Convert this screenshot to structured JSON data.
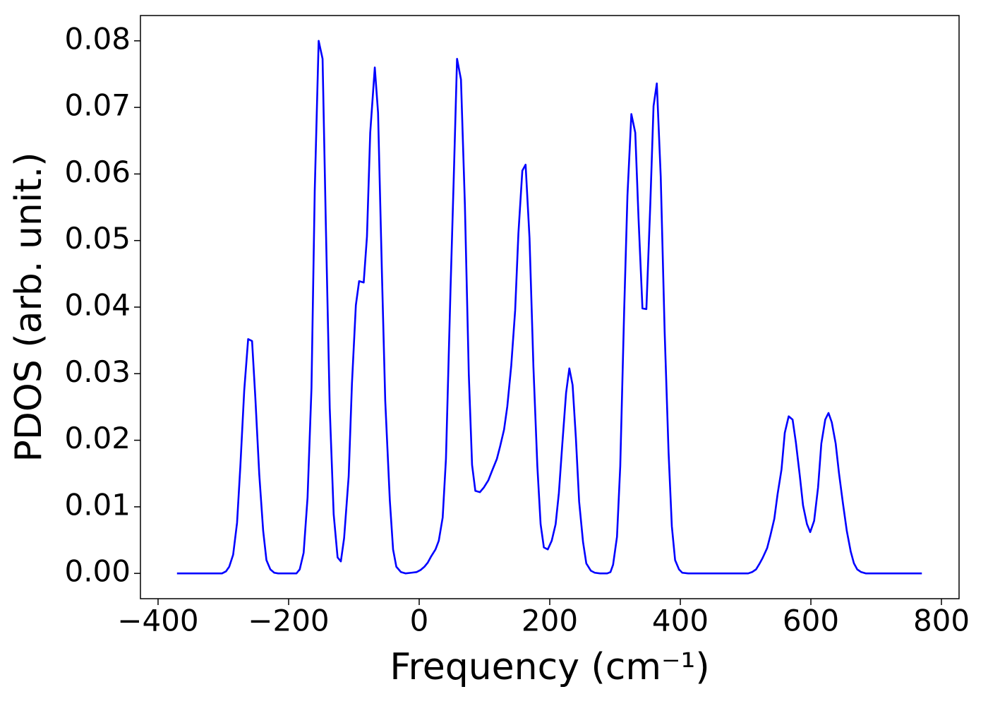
{
  "chart_data": {
    "type": "line",
    "xlabel": "Frequency (cm⁻¹)",
    "ylabel": "PDOS (arb. unit.)",
    "xlim": [
      -427,
      827
    ],
    "ylim": [
      -0.0038,
      0.0838
    ],
    "xticks": [
      {
        "value": -400,
        "label": "−400"
      },
      {
        "value": -200,
        "label": "−200"
      },
      0,
      200,
      400,
      600,
      800
    ],
    "yticks": [
      {
        "value": 0,
        "label": "0.00"
      },
      {
        "value": 0.01,
        "label": "0.01"
      },
      {
        "value": 0.02,
        "label": "0.02"
      },
      {
        "value": 0.03,
        "label": "0.03"
      },
      {
        "value": 0.04,
        "label": "0.04"
      },
      {
        "value": 0.05,
        "label": "0.05"
      },
      {
        "value": 0.06,
        "label": "0.06"
      },
      {
        "value": 0.07,
        "label": "0.07"
      },
      {
        "value": 0.08,
        "label": "0.08"
      }
    ],
    "grid": false,
    "x": [
      -371,
      -302,
      -296,
      -291,
      -285,
      -279,
      -274,
      -268,
      -262,
      -256,
      -251,
      -245,
      -239,
      -234,
      -228,
      -222,
      -216,
      -188,
      -183,
      -177,
      -171,
      -165,
      -160,
      -154,
      -148,
      -143,
      -137,
      -131,
      -125,
      -120,
      -115,
      -108,
      -103,
      -97,
      -92,
      -85,
      -80,
      -75,
      -68,
      -63,
      -57,
      -52,
      -45,
      -40,
      -35,
      -28,
      -21,
      -12,
      -4,
      2,
      8,
      13,
      18,
      25,
      30,
      36,
      41,
      48,
      53,
      58,
      64,
      70,
      76,
      81,
      86,
      93,
      99,
      106,
      112,
      119,
      124,
      130,
      135,
      141,
      147,
      152,
      158,
      163,
      169,
      175,
      181,
      186,
      191,
      197,
      203,
      209,
      214,
      219,
      225,
      230,
      235,
      240,
      245,
      251,
      256,
      263,
      269,
      277,
      288,
      293,
      297,
      303,
      308,
      314,
      319,
      325,
      331,
      336,
      342,
      348,
      354,
      359,
      364,
      370,
      376,
      382,
      387,
      392,
      398,
      403,
      412,
      504,
      510,
      516,
      521,
      526,
      533,
      538,
      544,
      549,
      555,
      560,
      566,
      572,
      577,
      583,
      588,
      594,
      599,
      605,
      611,
      616,
      622,
      627,
      632,
      638,
      643,
      649,
      655,
      661,
      666,
      671,
      677,
      684,
      770
    ],
    "series": [
      {
        "name": "PDOS",
        "color": "#0000ff",
        "values": [
          0,
          0,
          0.0003,
          0.001,
          0.0028,
          0.0076,
          0.016,
          0.0275,
          0.0352,
          0.0349,
          0.0264,
          0.0149,
          0.0064,
          0.002,
          0.0006,
          0.0001,
          0,
          0,
          0.0006,
          0.0031,
          0.0114,
          0.0278,
          0.0575,
          0.08,
          0.0773,
          0.0524,
          0.0248,
          0.0089,
          0.0024,
          0.0018,
          0.0053,
          0.0146,
          0.0285,
          0.0403,
          0.0439,
          0.0437,
          0.0506,
          0.0662,
          0.076,
          0.0692,
          0.0448,
          0.0259,
          0.011,
          0.0036,
          0.001,
          0.0002,
          0,
          0.0001,
          0.0002,
          0.0005,
          0.001,
          0.0016,
          0.0025,
          0.0036,
          0.0049,
          0.0084,
          0.0172,
          0.0427,
          0.0596,
          0.0773,
          0.0742,
          0.0554,
          0.0299,
          0.0163,
          0.0124,
          0.0122,
          0.0129,
          0.014,
          0.0155,
          0.0172,
          0.0191,
          0.0216,
          0.0251,
          0.0312,
          0.0395,
          0.0511,
          0.0605,
          0.0614,
          0.0504,
          0.031,
          0.0161,
          0.0074,
          0.0039,
          0.0036,
          0.0049,
          0.0074,
          0.0121,
          0.0191,
          0.0271,
          0.0308,
          0.0283,
          0.0204,
          0.0108,
          0.0047,
          0.0015,
          0.0004,
          0.0001,
          0,
          0,
          0.0002,
          0.0013,
          0.0055,
          0.0161,
          0.0395,
          0.0567,
          0.069,
          0.0662,
          0.0533,
          0.0398,
          0.0397,
          0.0554,
          0.0702,
          0.0736,
          0.0596,
          0.0363,
          0.0182,
          0.0071,
          0.002,
          0.0006,
          0.0001,
          0,
          0,
          0.0002,
          0.0006,
          0.0014,
          0.0023,
          0.0038,
          0.0057,
          0.0082,
          0.0119,
          0.0156,
          0.0211,
          0.0236,
          0.0231,
          0.0197,
          0.0147,
          0.0102,
          0.0074,
          0.0062,
          0.0079,
          0.0129,
          0.0195,
          0.0231,
          0.0241,
          0.0227,
          0.0195,
          0.0151,
          0.0106,
          0.0064,
          0.0033,
          0.0015,
          0.0006,
          0.0002,
          0,
          0
        ]
      }
    ]
  }
}
